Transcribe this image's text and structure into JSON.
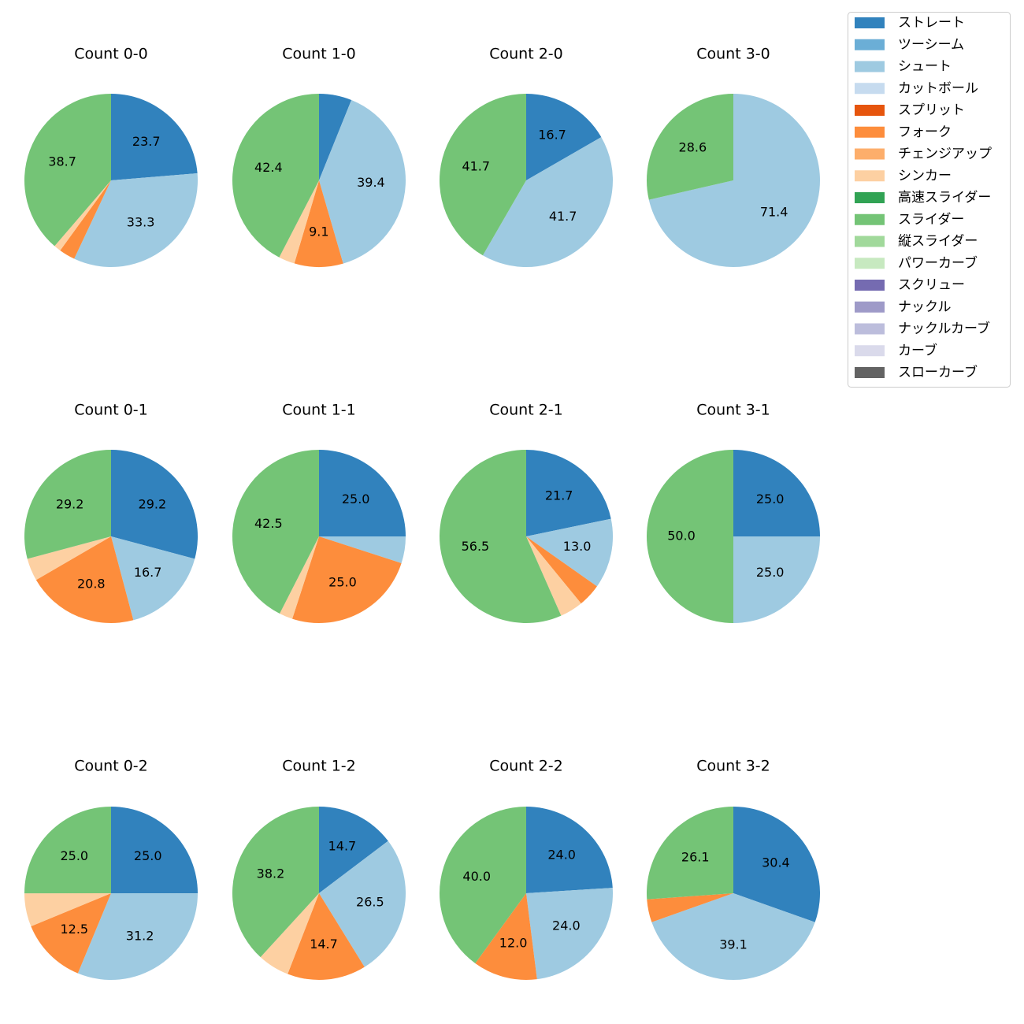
{
  "chart_data": {
    "type": "pie",
    "legend": {
      "placement": "top-right",
      "entries": [
        {
          "name": "ストレート",
          "color": "#3182bd"
        },
        {
          "name": "ツーシーム",
          "color": "#6baed6"
        },
        {
          "name": "シュート",
          "color": "#9ecae1"
        },
        {
          "name": "カットボール",
          "color": "#c6dbef"
        },
        {
          "name": "スプリット",
          "color": "#e6550d"
        },
        {
          "name": "フォーク",
          "color": "#fd8d3c"
        },
        {
          "name": "チェンジアップ",
          "color": "#fdae6b"
        },
        {
          "name": "シンカー",
          "color": "#fdd0a2"
        },
        {
          "name": "高速スライダー",
          "color": "#31a354"
        },
        {
          "name": "スライダー",
          "color": "#74c476"
        },
        {
          "name": "縦スライダー",
          "color": "#a1d99b"
        },
        {
          "name": "パワーカーブ",
          "color": "#c7e9c0"
        },
        {
          "name": "スクリュー",
          "color": "#756bb1"
        },
        {
          "name": "ナックル",
          "color": "#9e9ac8"
        },
        {
          "name": "ナックルカーブ",
          "color": "#bcbddc"
        },
        {
          "name": "カーブ",
          "color": "#dadaeb"
        },
        {
          "name": "スローカーブ",
          "color": "#636363"
        }
      ]
    },
    "pies": [
      {
        "title": "Count 0-0",
        "slices": [
          {
            "type": "ストレート",
            "value": 23.7,
            "label": "23.7"
          },
          {
            "type": "シュート",
            "value": 33.3,
            "label": "33.3"
          },
          {
            "type": "フォーク",
            "value": 3.0,
            "label": ""
          },
          {
            "type": "シンカー",
            "value": 1.3,
            "label": ""
          },
          {
            "type": "スライダー",
            "value": 38.7,
            "label": "38.7"
          }
        ]
      },
      {
        "title": "Count 1-0",
        "slices": [
          {
            "type": "ストレート",
            "value": 6.1,
            "label": ""
          },
          {
            "type": "シュート",
            "value": 39.4,
            "label": "39.4"
          },
          {
            "type": "フォーク",
            "value": 9.1,
            "label": "9.1"
          },
          {
            "type": "シンカー",
            "value": 3.0,
            "label": ""
          },
          {
            "type": "スライダー",
            "value": 42.4,
            "label": "42.4"
          }
        ]
      },
      {
        "title": "Count 2-0",
        "slices": [
          {
            "type": "ストレート",
            "value": 16.7,
            "label": "16.7"
          },
          {
            "type": "シュート",
            "value": 41.7,
            "label": "41.7"
          },
          {
            "type": "スライダー",
            "value": 41.7,
            "label": "41.7"
          }
        ]
      },
      {
        "title": "Count 3-0",
        "slices": [
          {
            "type": "シュート",
            "value": 71.4,
            "label": "71.4"
          },
          {
            "type": "スライダー",
            "value": 28.6,
            "label": "28.6"
          }
        ]
      },
      {
        "title": "Count 0-1",
        "slices": [
          {
            "type": "ストレート",
            "value": 29.2,
            "label": "29.2"
          },
          {
            "type": "シュート",
            "value": 16.7,
            "label": "16.7"
          },
          {
            "type": "フォーク",
            "value": 20.8,
            "label": "20.8"
          },
          {
            "type": "シンカー",
            "value": 4.2,
            "label": ""
          },
          {
            "type": "スライダー",
            "value": 29.2,
            "label": "29.2"
          }
        ]
      },
      {
        "title": "Count 1-1",
        "slices": [
          {
            "type": "ストレート",
            "value": 25.0,
            "label": "25.0"
          },
          {
            "type": "シュート",
            "value": 5.0,
            "label": ""
          },
          {
            "type": "フォーク",
            "value": 25.0,
            "label": "25.0"
          },
          {
            "type": "シンカー",
            "value": 2.5,
            "label": ""
          },
          {
            "type": "スライダー",
            "value": 42.5,
            "label": "42.5"
          }
        ]
      },
      {
        "title": "Count 2-1",
        "slices": [
          {
            "type": "ストレート",
            "value": 21.7,
            "label": "21.7"
          },
          {
            "type": "シュート",
            "value": 13.0,
            "label": "13.0"
          },
          {
            "type": "フォーク",
            "value": 4.3,
            "label": ""
          },
          {
            "type": "シンカー",
            "value": 4.3,
            "label": ""
          },
          {
            "type": "スライダー",
            "value": 56.5,
            "label": "56.5"
          }
        ]
      },
      {
        "title": "Count 3-1",
        "slices": [
          {
            "type": "ストレート",
            "value": 25.0,
            "label": "25.0"
          },
          {
            "type": "シュート",
            "value": 25.0,
            "label": "25.0"
          },
          {
            "type": "スライダー",
            "value": 50.0,
            "label": "50.0"
          }
        ]
      },
      {
        "title": "Count 0-2",
        "slices": [
          {
            "type": "ストレート",
            "value": 25.0,
            "label": "25.0"
          },
          {
            "type": "シュート",
            "value": 31.2,
            "label": "31.2"
          },
          {
            "type": "フォーク",
            "value": 12.5,
            "label": "12.5"
          },
          {
            "type": "シンカー",
            "value": 6.2,
            "label": ""
          },
          {
            "type": "スライダー",
            "value": 25.0,
            "label": "25.0"
          }
        ]
      },
      {
        "title": "Count 1-2",
        "slices": [
          {
            "type": "ストレート",
            "value": 14.7,
            "label": "14.7"
          },
          {
            "type": "シュート",
            "value": 26.5,
            "label": "26.5"
          },
          {
            "type": "フォーク",
            "value": 14.7,
            "label": "14.7"
          },
          {
            "type": "シンカー",
            "value": 5.9,
            "label": ""
          },
          {
            "type": "スライダー",
            "value": 38.2,
            "label": "38.2"
          }
        ]
      },
      {
        "title": "Count 2-2",
        "slices": [
          {
            "type": "ストレート",
            "value": 24.0,
            "label": "24.0"
          },
          {
            "type": "シュート",
            "value": 24.0,
            "label": "24.0"
          },
          {
            "type": "フォーク",
            "value": 12.0,
            "label": "12.0"
          },
          {
            "type": "スライダー",
            "value": 40.0,
            "label": "40.0"
          }
        ]
      },
      {
        "title": "Count 3-2",
        "slices": [
          {
            "type": "ストレート",
            "value": 30.4,
            "label": "30.4"
          },
          {
            "type": "シュート",
            "value": 39.1,
            "label": "39.1"
          },
          {
            "type": "フォーク",
            "value": 4.3,
            "label": ""
          },
          {
            "type": "スライダー",
            "value": 26.1,
            "label": "26.1"
          }
        ]
      }
    ]
  }
}
